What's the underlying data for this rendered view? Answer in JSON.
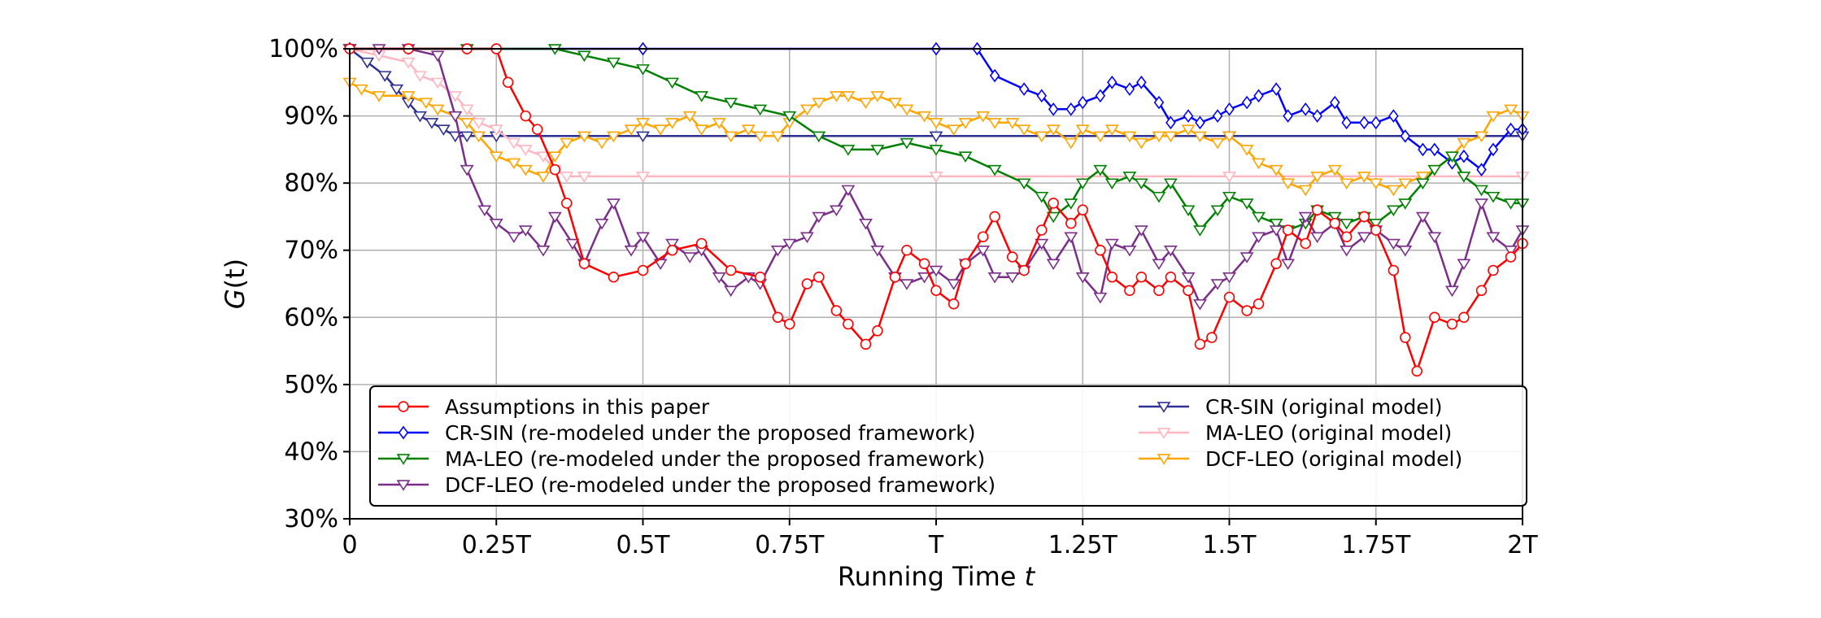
{
  "chart_data": {
    "type": "line",
    "xlabel_text": "Running Time ",
    "xlabel_var": "t",
    "ylabel_var": "G",
    "ylabel_arg": "(t)",
    "xlim": [
      0,
      2
    ],
    "ylim": [
      30,
      100
    ],
    "x_ticks": [
      0,
      0.25,
      0.5,
      0.75,
      1,
      1.25,
      1.5,
      1.75,
      2
    ],
    "x_tick_labels": [
      "0",
      "0.25T",
      "0.5T",
      "0.75T",
      "T",
      "1.25T",
      "1.5T",
      "1.75T",
      "2T"
    ],
    "y_ticks": [
      30,
      40,
      50,
      60,
      70,
      80,
      90,
      100
    ],
    "y_tick_labels": [
      "30%",
      "40%",
      "50%",
      "60%",
      "70%",
      "80%",
      "90%",
      "100%"
    ],
    "grid": true,
    "legend_position": "lower-center",
    "series": [
      {
        "name": "Assumptions in this paper",
        "color": "#ff0000",
        "marker": "circle",
        "x": [
          0,
          0.1,
          0.2,
          0.25,
          0.27,
          0.3,
          0.32,
          0.35,
          0.37,
          0.4,
          0.45,
          0.5,
          0.55,
          0.6,
          0.65,
          0.7,
          0.73,
          0.75,
          0.78,
          0.8,
          0.83,
          0.85,
          0.88,
          0.9,
          0.93,
          0.95,
          0.98,
          1.0,
          1.03,
          1.05,
          1.08,
          1.1,
          1.13,
          1.15,
          1.18,
          1.2,
          1.23,
          1.25,
          1.28,
          1.3,
          1.33,
          1.35,
          1.38,
          1.4,
          1.43,
          1.45,
          1.47,
          1.5,
          1.53,
          1.55,
          1.58,
          1.6,
          1.63,
          1.65,
          1.68,
          1.7,
          1.73,
          1.75,
          1.78,
          1.8,
          1.82,
          1.85,
          1.88,
          1.9,
          1.93,
          1.95,
          1.98,
          2.0
        ],
        "y": [
          100,
          100,
          100,
          100,
          95,
          90,
          88,
          82,
          77,
          68,
          66,
          67,
          70,
          71,
          67,
          66,
          60,
          59,
          65,
          66,
          61,
          59,
          56,
          58,
          66,
          70,
          68,
          64,
          62,
          68,
          72,
          75,
          69,
          67,
          73,
          77,
          74,
          76,
          70,
          66,
          64,
          66,
          64,
          66,
          64,
          56,
          57,
          63,
          61,
          62,
          68,
          73,
          71,
          76,
          74,
          72,
          75,
          73,
          67,
          57,
          52,
          60,
          59,
          60,
          64,
          67,
          69,
          71
        ]
      },
      {
        "name": "CR-SIN (re-modeled under the proposed framework)",
        "color": "#0000ff",
        "marker": "diamond",
        "x": [
          0,
          0.5,
          1.0,
          1.07,
          1.1,
          1.15,
          1.18,
          1.2,
          1.23,
          1.25,
          1.28,
          1.3,
          1.33,
          1.35,
          1.38,
          1.4,
          1.43,
          1.45,
          1.48,
          1.5,
          1.53,
          1.55,
          1.58,
          1.6,
          1.63,
          1.65,
          1.68,
          1.7,
          1.73,
          1.75,
          1.78,
          1.8,
          1.83,
          1.85,
          1.88,
          1.9,
          1.93,
          1.95,
          1.98,
          2.0
        ],
        "y": [
          100,
          100,
          100,
          100,
          96,
          94,
          93,
          91,
          91,
          92,
          93,
          95,
          94,
          95,
          92,
          89,
          90,
          89,
          90,
          91,
          92,
          93,
          94,
          90,
          91,
          90,
          92,
          89,
          89,
          89,
          90,
          87,
          85,
          85,
          83,
          84,
          82,
          85,
          88,
          88
        ]
      },
      {
        "name": "MA-LEO (re-modeled under the proposed framework)",
        "color": "#008000",
        "marker": "triangle-down",
        "x": [
          0,
          0.2,
          0.35,
          0.4,
          0.45,
          0.5,
          0.55,
          0.6,
          0.65,
          0.7,
          0.75,
          0.8,
          0.85,
          0.9,
          0.95,
          1.0,
          1.05,
          1.1,
          1.15,
          1.18,
          1.2,
          1.23,
          1.25,
          1.28,
          1.3,
          1.33,
          1.35,
          1.38,
          1.4,
          1.43,
          1.45,
          1.48,
          1.5,
          1.53,
          1.55,
          1.58,
          1.6,
          1.63,
          1.65,
          1.68,
          1.7,
          1.73,
          1.75,
          1.78,
          1.8,
          1.83,
          1.85,
          1.88,
          1.9,
          1.93,
          1.95,
          1.98,
          2.0
        ],
        "y": [
          100,
          100,
          100,
          99,
          98,
          97,
          95,
          93,
          92,
          91,
          90,
          87,
          85,
          85,
          86,
          85,
          84,
          82,
          80,
          78,
          75,
          77,
          80,
          82,
          80,
          81,
          80,
          78,
          80,
          76,
          73,
          76,
          78,
          77,
          75,
          74,
          73,
          74,
          76,
          75,
          74,
          75,
          74,
          76,
          77,
          80,
          82,
          84,
          81,
          79,
          78,
          77,
          77
        ]
      },
      {
        "name": "DCF-LEO (re-modeled under the proposed framework)",
        "color": "#7a2e8a",
        "marker": "triangle-down",
        "x": [
          0,
          0.05,
          0.1,
          0.15,
          0.18,
          0.2,
          0.23,
          0.25,
          0.28,
          0.3,
          0.33,
          0.35,
          0.38,
          0.4,
          0.43,
          0.45,
          0.48,
          0.5,
          0.53,
          0.55,
          0.58,
          0.6,
          0.63,
          0.65,
          0.68,
          0.7,
          0.73,
          0.75,
          0.78,
          0.8,
          0.83,
          0.85,
          0.88,
          0.9,
          0.93,
          0.95,
          0.98,
          1.0,
          1.03,
          1.05,
          1.08,
          1.1,
          1.13,
          1.15,
          1.18,
          1.2,
          1.23,
          1.25,
          1.28,
          1.3,
          1.33,
          1.35,
          1.38,
          1.4,
          1.43,
          1.45,
          1.48,
          1.5,
          1.53,
          1.55,
          1.58,
          1.6,
          1.63,
          1.65,
          1.68,
          1.7,
          1.73,
          1.75,
          1.78,
          1.8,
          1.83,
          1.85,
          1.88,
          1.9,
          1.93,
          1.95,
          1.98,
          2.0
        ],
        "y": [
          100,
          100,
          100,
          99,
          90,
          82,
          76,
          74,
          72,
          73,
          70,
          75,
          71,
          68,
          74,
          77,
          70,
          72,
          68,
          71,
          69,
          70,
          66,
          64,
          66,
          65,
          70,
          71,
          72,
          75,
          76,
          79,
          74,
          70,
          66,
          65,
          66,
          67,
          65,
          68,
          70,
          66,
          66,
          67,
          71,
          68,
          72,
          66,
          63,
          71,
          70,
          73,
          68,
          70,
          66,
          62,
          65,
          66,
          69,
          72,
          73,
          68,
          75,
          72,
          74,
          70,
          72,
          73,
          71,
          70,
          75,
          72,
          64,
          68,
          77,
          72,
          70,
          73
        ]
      },
      {
        "name": "CR-SIN (original model)",
        "color": "#2e3192",
        "marker": "triangle-down",
        "x": [
          0,
          0.03,
          0.06,
          0.08,
          0.1,
          0.12,
          0.14,
          0.16,
          0.18,
          0.2,
          0.25,
          0.5,
          1.0,
          1.5,
          2.0
        ],
        "y": [
          100,
          98,
          96,
          94,
          92,
          90,
          89,
          88,
          87,
          87,
          87,
          87,
          87,
          87,
          87
        ]
      },
      {
        "name": "MA-LEO (original model)",
        "color": "#ffb6c1",
        "marker": "triangle-down",
        "x": [
          0,
          0.05,
          0.1,
          0.12,
          0.15,
          0.18,
          0.2,
          0.22,
          0.25,
          0.28,
          0.3,
          0.33,
          0.35,
          0.37,
          0.4,
          0.5,
          1.0,
          1.5,
          2.0
        ],
        "y": [
          100,
          99,
          98,
          96,
          95,
          93,
          91,
          89,
          88,
          86,
          85,
          84,
          82,
          81,
          81,
          81,
          81,
          81,
          81
        ]
      },
      {
        "name": "DCF-LEO (original model)",
        "color": "#ffa500",
        "marker": "triangle-down",
        "x": [
          0,
          0.02,
          0.05,
          0.1,
          0.13,
          0.15,
          0.18,
          0.2,
          0.22,
          0.25,
          0.28,
          0.3,
          0.33,
          0.35,
          0.37,
          0.4,
          0.43,
          0.45,
          0.48,
          0.5,
          0.53,
          0.55,
          0.58,
          0.6,
          0.63,
          0.65,
          0.68,
          0.7,
          0.73,
          0.75,
          0.78,
          0.8,
          0.83,
          0.85,
          0.88,
          0.9,
          0.93,
          0.95,
          0.98,
          1.0,
          1.03,
          1.05,
          1.08,
          1.1,
          1.13,
          1.15,
          1.18,
          1.2,
          1.23,
          1.25,
          1.28,
          1.3,
          1.33,
          1.35,
          1.38,
          1.4,
          1.43,
          1.45,
          1.48,
          1.5,
          1.53,
          1.55,
          1.58,
          1.6,
          1.63,
          1.65,
          1.68,
          1.7,
          1.73,
          1.75,
          1.78,
          1.8,
          1.83,
          1.85,
          1.88,
          1.9,
          1.93,
          1.95,
          1.98,
          2.0
        ],
        "y": [
          95,
          94,
          93,
          93,
          92,
          91,
          90,
          89,
          87,
          84,
          83,
          82,
          81,
          84,
          86,
          87,
          86,
          87,
          88,
          89,
          88,
          89,
          90,
          88,
          89,
          87,
          88,
          87,
          87,
          89,
          91,
          92,
          93,
          93,
          92,
          93,
          92,
          91,
          90,
          89,
          88,
          89,
          90,
          89,
          89,
          88,
          87,
          88,
          86,
          88,
          87,
          88,
          87,
          86,
          87,
          87,
          88,
          87,
          86,
          87,
          85,
          83,
          82,
          80,
          79,
          81,
          82,
          80,
          81,
          80,
          79,
          80,
          81,
          82,
          84,
          86,
          87,
          90,
          91,
          90
        ]
      }
    ]
  }
}
